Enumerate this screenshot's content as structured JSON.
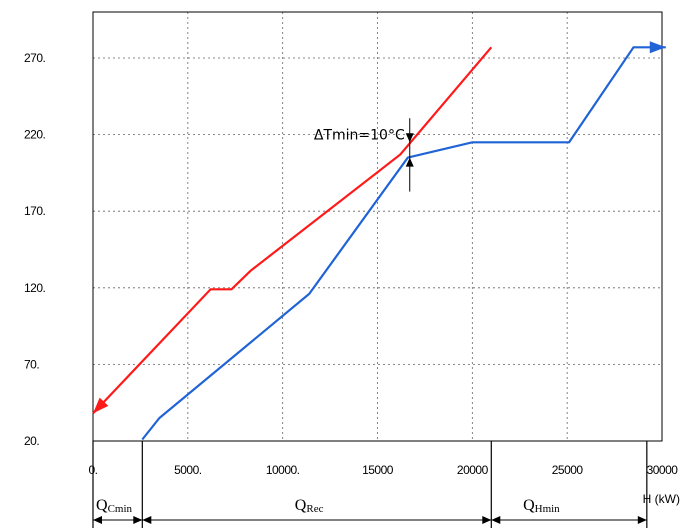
{
  "chart_data": {
    "type": "line",
    "title": "",
    "xlabel": "H (kW)",
    "ylabel": "",
    "xlim": [
      0,
      30000
    ],
    "ylim": [
      20,
      270
    ],
    "x_ticks": [
      0,
      5000,
      10000,
      15000,
      20000,
      25000,
      30000
    ],
    "x_tick_labels": [
      "0.",
      "5000.",
      "10000.",
      "15000",
      "20000",
      "25000",
      "30000"
    ],
    "y_ticks": [
      20,
      70,
      120,
      170,
      220,
      270
    ],
    "y_tick_labels": [
      "20.",
      "70.",
      "120.",
      "170.",
      "220.",
      "270."
    ],
    "grid": true,
    "series": [
      {
        "color": "#ff1a1a",
        "arrow": "start",
        "points": [
          [
            0,
            38
          ],
          [
            6200,
            119
          ],
          [
            7300,
            119
          ],
          [
            8300,
            131
          ],
          [
            16200,
            207
          ],
          [
            21000,
            277
          ]
        ]
      },
      {
        "color": "#1f63d6",
        "arrow": "end",
        "points": [
          [
            2600,
            21
          ],
          [
            3500,
            35
          ],
          [
            11400,
            116
          ],
          [
            16600,
            205
          ],
          [
            20000,
            215
          ],
          [
            25100,
            215
          ],
          [
            28500,
            277
          ],
          [
            30200,
            277
          ]
        ]
      }
    ],
    "annotations": {
      "delta_t": "ΔTmin=10°C",
      "delta_t_x": 16700,
      "delta_t_y_top": 215,
      "delta_t_y_bottom": 205,
      "q_cmin": {
        "main": "Q",
        "sub": "Cmin",
        "x_start": 0,
        "x_end": 2600
      },
      "q_rec": {
        "main": "Q",
        "sub": "Rec",
        "x_start": 2600,
        "x_end": 21000
      },
      "q_hmin": {
        "main": "Q",
        "sub": "Hmin",
        "x_start": 21000,
        "x_end": 29200
      }
    }
  }
}
